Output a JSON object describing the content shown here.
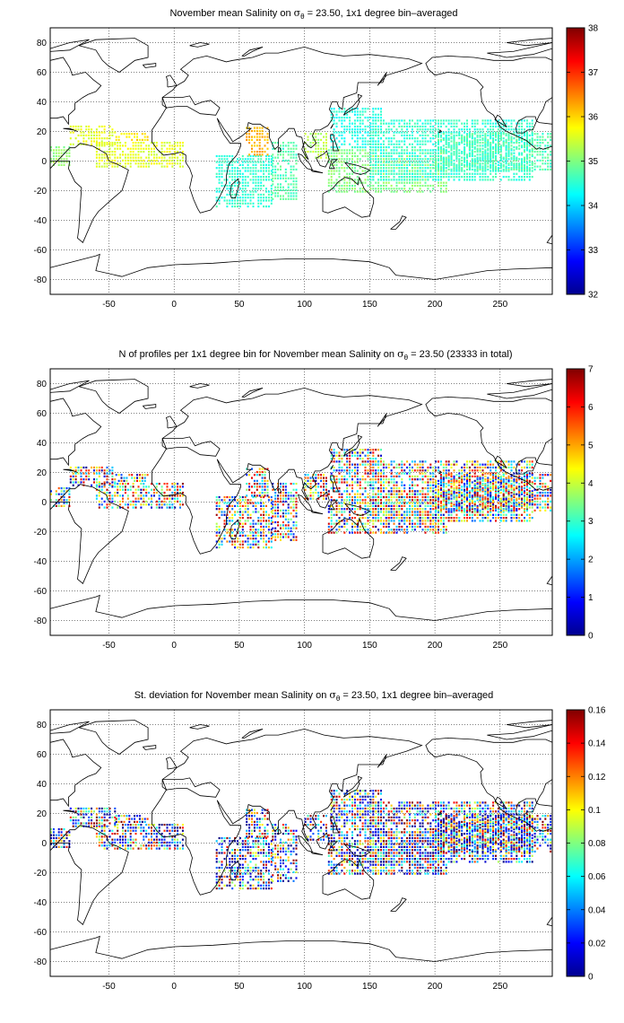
{
  "panels": [
    {
      "title_pre": "November mean Salinity on",
      "title_post": "= 23.50, 1x1 degree bin–averaged",
      "colorbar_ticks": [
        "32",
        "33",
        "34",
        "35",
        "36",
        "37",
        "38"
      ],
      "field": "salinity",
      "color_range": [
        32,
        38
      ]
    },
    {
      "title_pre": "N of profiles per 1x1 degree bin for November mean Salinity on",
      "title_post": "= 23.50 (23333 in total)",
      "colorbar_ticks": [
        "0",
        "1",
        "2",
        "3",
        "4",
        "5",
        "6",
        "7"
      ],
      "field": "profile-count",
      "color_range": [
        0,
        7
      ]
    },
    {
      "title_pre": "St. deviation for November mean Salinity on",
      "title_post": "= 23.50, 1x1 degree bin–averaged",
      "colorbar_ticks": [
        "0",
        "0.02",
        "0.04",
        "0.06",
        "0.08",
        "0.1",
        "0.12",
        "0.14",
        "0.16"
      ],
      "field": "std-deviation",
      "color_range": [
        0,
        0.16
      ]
    }
  ],
  "sigma_symbol": "σ",
  "sigma_subscript": "θ",
  "map": {
    "lon_ticks": [
      "-50",
      "0",
      "50",
      "100",
      "150",
      "200",
      "250"
    ],
    "lat_ticks": [
      "80",
      "60",
      "40",
      "20",
      "0",
      "-20",
      "-40",
      "-60",
      "-80"
    ],
    "lon_range": [
      -95,
      290
    ],
    "lat_range": [
      -90,
      90
    ],
    "grid": true,
    "colormap": "jet"
  }
}
